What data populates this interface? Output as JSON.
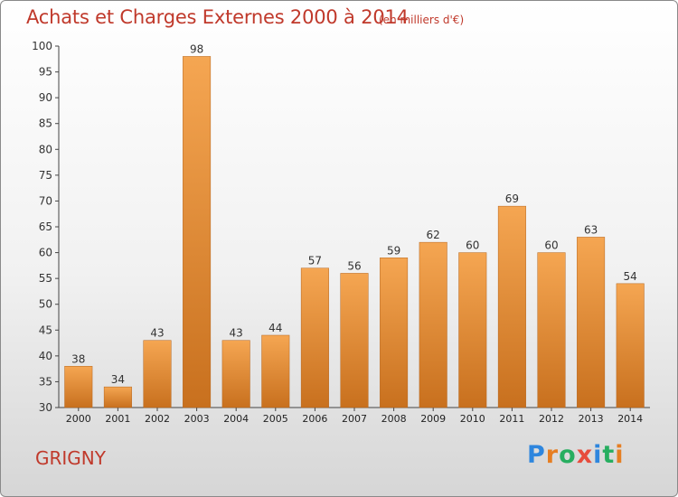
{
  "header": {
    "title": "Achats et Charges Externes 2000 à 2014",
    "subtitle": "(en milliers d'€)"
  },
  "footer": {
    "city": "GRIGNY",
    "brand": {
      "letters": [
        "P",
        "r",
        "o",
        "x",
        "i",
        "t",
        "i"
      ],
      "colors": [
        "#2e86de",
        "#e67e22",
        "#27ae60",
        "#e74c3c",
        "#2e86de",
        "#27ae60",
        "#e67e22"
      ]
    }
  },
  "chart_data": {
    "type": "bar",
    "title": "Achats et Charges Externes 2000 à 2014",
    "subtitle": "(en milliers d'€)",
    "categories": [
      "2000",
      "2001",
      "2002",
      "2003",
      "2004",
      "2005",
      "2006",
      "2007",
      "2008",
      "2009",
      "2010",
      "2011",
      "2012",
      "2013",
      "2014"
    ],
    "values": [
      38,
      34,
      43,
      98,
      43,
      44,
      57,
      56,
      59,
      62,
      60,
      69,
      60,
      63,
      54
    ],
    "ylim": [
      30,
      100
    ],
    "yticks": [
      30,
      35,
      40,
      45,
      50,
      55,
      60,
      65,
      70,
      75,
      80,
      85,
      90,
      95,
      100
    ],
    "grid": false,
    "colors": {
      "bar_top": "#f5a652",
      "bar_bottom": "#c8701e",
      "axis": "#444444"
    }
  }
}
